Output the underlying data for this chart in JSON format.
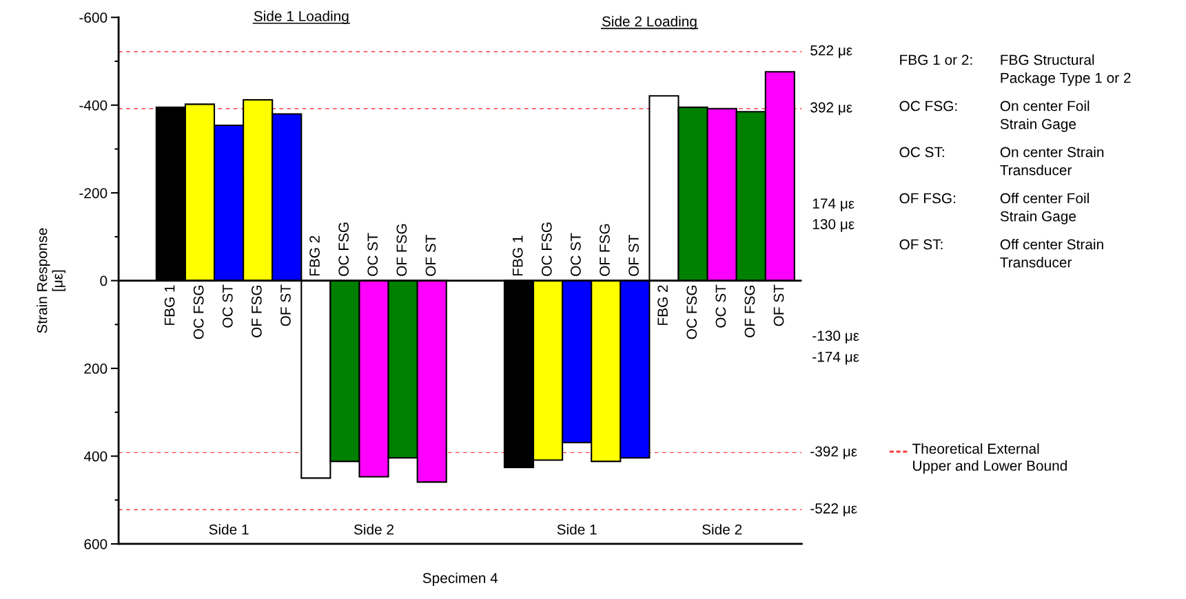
{
  "chart_data": {
    "type": "bar",
    "xlabel": "Specimen 4",
    "ylabel": "Strain Response\n[με]",
    "categories": [
      "FBG 1",
      "OC FSG",
      "OC ST",
      "OF FSG",
      "OF ST",
      "FBG 2",
      "OC FSG",
      "OC ST",
      "OF FSG",
      "OF ST",
      null,
      null,
      "FBG 1",
      "OC FSG",
      "OC ST",
      "OF FSG",
      "OF ST",
      "FBG 2",
      "OC FSG",
      "OC ST",
      "OF FSG",
      "OF ST"
    ],
    "values": [
      -395,
      -402,
      -354,
      -412,
      -380,
      450,
      412,
      447,
      404,
      459,
      null,
      null,
      426,
      409,
      369,
      412,
      404,
      -421,
      -395,
      -392,
      -385,
      -476
    ],
    "colors": [
      "#000000",
      "#ffff00",
      "#0000ff",
      "#ffff00",
      "#0000ff",
      "#ffffff",
      "#008000",
      "#ff00ff",
      "#008000",
      "#ff00ff",
      "#ffffff",
      "#ffffff",
      "#000000",
      "#ffff00",
      "#0000ff",
      "#ffff00",
      "#0000ff",
      "#ffffff",
      "#008000",
      "#ff00ff",
      "#008000",
      "#ff00ff"
    ],
    "ylim": [
      600,
      -600
    ],
    "yticks": [
      -600,
      -400,
      -200,
      0,
      200,
      400,
      600
    ],
    "grid": false,
    "ref_lines": [
      {
        "axis": "y",
        "value": -522,
        "label": "522 με",
        "color": "#ff3b3b",
        "line_style": "dashed"
      },
      {
        "axis": "y",
        "value": -392,
        "label": "392 με",
        "color": "#ff3b3b",
        "line_style": "dashed"
      },
      {
        "axis": "y",
        "value": 392,
        "label": "-392 με",
        "color": "#ff3b3b",
        "line_style": "dashed"
      },
      {
        "axis": "y",
        "value": 522,
        "label": "-522 με",
        "color": "#ff3b3b",
        "line_style": "dashed"
      }
    ],
    "annotations": [
      "Side 1 Loading",
      "Side 2 Loading",
      "Side 1",
      "Side 2",
      "Side 1",
      "Side 2",
      "174 με",
      "130 με",
      "-130 με",
      "-174 με",
      "FBG 1 or 2:",
      "FBG Structural\nPackage Type 1 or 2",
      "OC FSG:",
      "On center Foil\nStrain Gage",
      "OC ST:",
      "On center Strain\nTransducer",
      "OF FSG:",
      "Off center Foil\nStrain Gage",
      "OF ST:",
      "Off center Strain\nTransducer",
      "Theoretical External\nUpper and Lower Bound"
    ]
  }
}
